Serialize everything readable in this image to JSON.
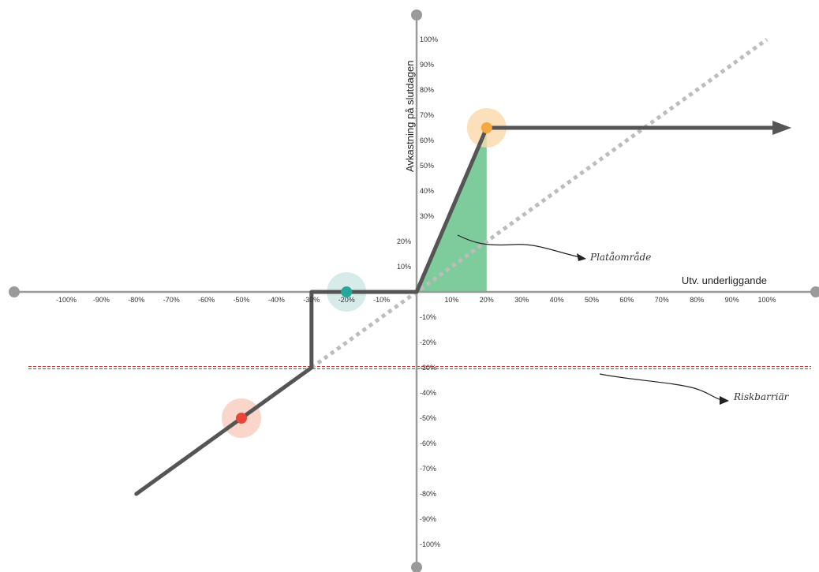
{
  "chart_data": {
    "type": "line",
    "xlabel": "Utv. underliggande",
    "ylabel": "Avkastning på slutdagen",
    "xlim": [
      -100,
      100
    ],
    "ylim": [
      -100,
      100
    ],
    "x_ticks": [
      "-100%",
      "-90%",
      "-80%",
      "-70%",
      "-60%",
      "-50%",
      "-40%",
      "-30%",
      "-20%",
      "-10%",
      "10%",
      "20%",
      "30%",
      "40%",
      "50%",
      "60%",
      "70%",
      "80%",
      "90%",
      "100%"
    ],
    "y_ticks_pos": [
      "10%",
      "20%",
      "30%",
      "40%",
      "50%",
      "60%",
      "70%",
      "80%",
      "90%",
      "100%"
    ],
    "y_ticks_neg": [
      "-10%",
      "-20%",
      "-30%",
      "-40%",
      "-50%",
      "-60%",
      "-70%",
      "-80%",
      "-90%",
      "-100%"
    ],
    "series": [
      {
        "values_x": [
          -80,
          -50,
          -30,
          -30,
          -30,
          -20,
          0,
          20,
          20,
          107
        ],
        "values_y": [
          -80,
          -50,
          -30,
          -30,
          0,
          0,
          0,
          65,
          65,
          65
        ]
      },
      {
        "values_x": [
          -30,
          100
        ],
        "values_y": [
          -30,
          100
        ]
      }
    ],
    "highlight_points": [
      {
        "x": 20,
        "y": 65,
        "color": "#f4a940",
        "halo": "#fbd8ab"
      },
      {
        "x": -20,
        "y": 0,
        "color": "#27a79a",
        "halo": "#cde6e3"
      },
      {
        "x": -50,
        "y": -50,
        "color": "#e8463a",
        "halo": "#f9cbbd"
      }
    ],
    "shaded_area": {
      "x": [
        0,
        20,
        20
      ],
      "y": [
        0,
        65,
        0
      ],
      "color": "#7ecb9b"
    },
    "risk_barrier": {
      "y": -30,
      "color": "#c0392b"
    },
    "annotations": [
      {
        "text": "Platåområde"
      },
      {
        "text": "Riskbarriär"
      }
    ],
    "grid": false,
    "legend": "none"
  }
}
